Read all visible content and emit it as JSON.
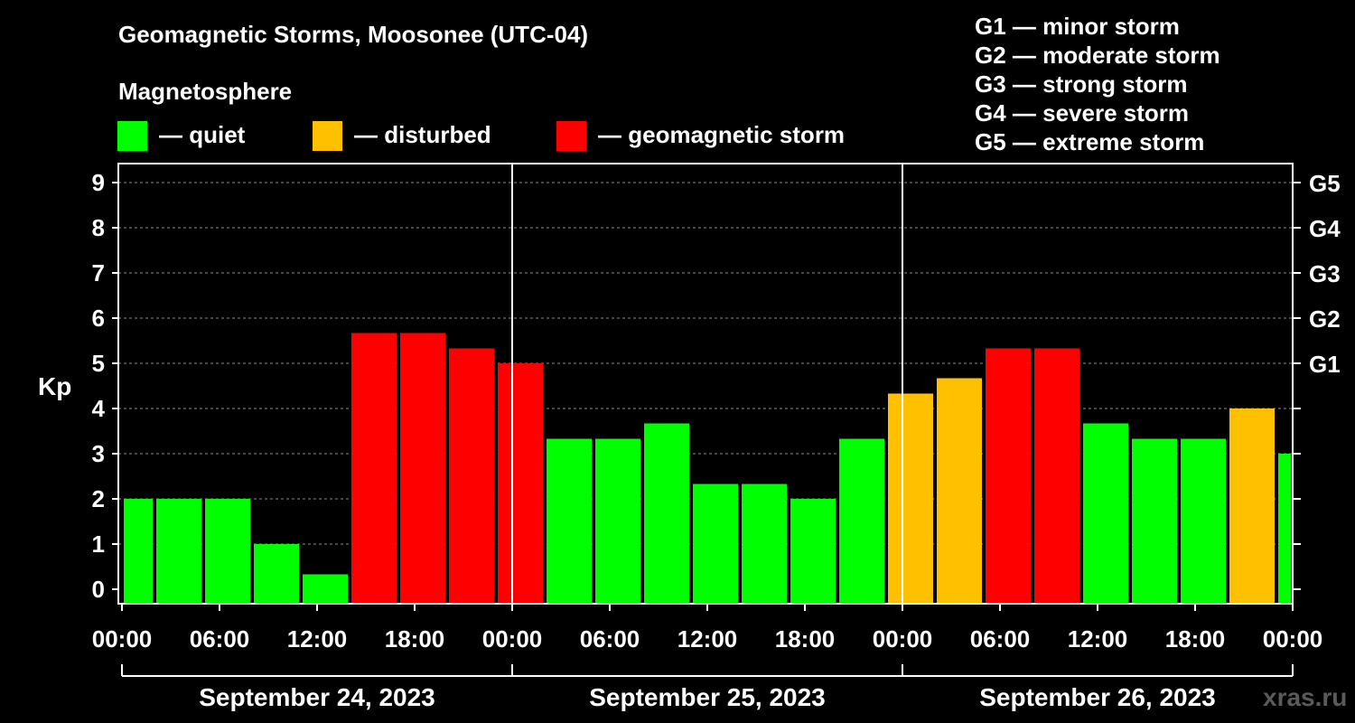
{
  "header": {
    "title": "Geomagnetic Storms, Moosonee (UTC-04)",
    "subtitle": "Magnetosphere",
    "legend": [
      {
        "label": "— quiet",
        "color": "#00ff00"
      },
      {
        "label": "— disturbed",
        "color": "#ffc000"
      },
      {
        "label": "— geomagnetic storm",
        "color": "#ff0000"
      }
    ],
    "scale": [
      "G1 — minor storm",
      "G2 — moderate storm",
      "G3 — strong storm",
      "G4 — severe storm",
      "G5 — extreme storm"
    ]
  },
  "watermark": "xras.ru",
  "chart_data": {
    "type": "bar",
    "title": "Geomagnetic Storms, Moosonee (UTC-04)",
    "ylabel": "Kp",
    "ylim": [
      0,
      9
    ],
    "yticks": [
      "0",
      "1",
      "2",
      "3",
      "4",
      "5",
      "6",
      "7",
      "8",
      "9"
    ],
    "right_ticks": [
      {
        "value": 5,
        "label": "G1"
      },
      {
        "value": 6,
        "label": "G2"
      },
      {
        "value": 7,
        "label": "G3"
      },
      {
        "value": 8,
        "label": "G4"
      },
      {
        "value": 9,
        "label": "G5"
      }
    ],
    "x_range_hours": [
      0,
      72
    ],
    "xtick_hours": [
      0,
      6,
      12,
      18,
      24,
      30,
      36,
      42,
      48,
      54,
      60,
      66,
      72
    ],
    "xtick_labels": [
      "00:00",
      "06:00",
      "12:00",
      "18:00",
      "00:00",
      "06:00",
      "12:00",
      "18:00",
      "00:00",
      "06:00",
      "12:00",
      "18:00",
      "00:00"
    ],
    "day_separators_hours": [
      24,
      48
    ],
    "days": [
      {
        "label": "September 24, 2023",
        "start": 0,
        "end": 24
      },
      {
        "label": "September 25, 2023",
        "start": 24,
        "end": 48
      },
      {
        "label": "September 26, 2023",
        "start": 48,
        "end": 72
      }
    ],
    "bars": [
      {
        "start": 0,
        "end": 2,
        "value": 2.0,
        "level": "quiet"
      },
      {
        "start": 2,
        "end": 5,
        "value": 2.0,
        "level": "quiet"
      },
      {
        "start": 5,
        "end": 8,
        "value": 2.0,
        "level": "quiet"
      },
      {
        "start": 8,
        "end": 11,
        "value": 1.0,
        "level": "quiet"
      },
      {
        "start": 11,
        "end": 14,
        "value": 0.33,
        "level": "quiet"
      },
      {
        "start": 14,
        "end": 17,
        "value": 5.67,
        "level": "storm"
      },
      {
        "start": 17,
        "end": 20,
        "value": 5.67,
        "level": "storm"
      },
      {
        "start": 20,
        "end": 23,
        "value": 5.33,
        "level": "storm"
      },
      {
        "start": 23,
        "end": 26,
        "value": 5.0,
        "level": "storm"
      },
      {
        "start": 26,
        "end": 29,
        "value": 3.33,
        "level": "quiet"
      },
      {
        "start": 29,
        "end": 32,
        "value": 3.33,
        "level": "quiet"
      },
      {
        "start": 32,
        "end": 35,
        "value": 3.67,
        "level": "quiet"
      },
      {
        "start": 35,
        "end": 38,
        "value": 2.33,
        "level": "quiet"
      },
      {
        "start": 38,
        "end": 41,
        "value": 2.33,
        "level": "quiet"
      },
      {
        "start": 41,
        "end": 44,
        "value": 2.0,
        "level": "quiet"
      },
      {
        "start": 44,
        "end": 47,
        "value": 3.33,
        "level": "quiet"
      },
      {
        "start": 47,
        "end": 50,
        "value": 4.33,
        "level": "disturbed"
      },
      {
        "start": 50,
        "end": 53,
        "value": 4.67,
        "level": "disturbed"
      },
      {
        "start": 53,
        "end": 56,
        "value": 5.33,
        "level": "storm"
      },
      {
        "start": 56,
        "end": 59,
        "value": 5.33,
        "level": "storm"
      },
      {
        "start": 59,
        "end": 62,
        "value": 3.67,
        "level": "quiet"
      },
      {
        "start": 62,
        "end": 65,
        "value": 3.33,
        "level": "quiet"
      },
      {
        "start": 65,
        "end": 68,
        "value": 3.33,
        "level": "quiet"
      },
      {
        "start": 68,
        "end": 71,
        "value": 4.0,
        "level": "disturbed"
      },
      {
        "start": 71,
        "end": 72,
        "value": 3.0,
        "level": "quiet"
      }
    ],
    "colors": {
      "quiet": "#00ff00",
      "disturbed": "#ffc000",
      "storm": "#ff0000"
    }
  }
}
